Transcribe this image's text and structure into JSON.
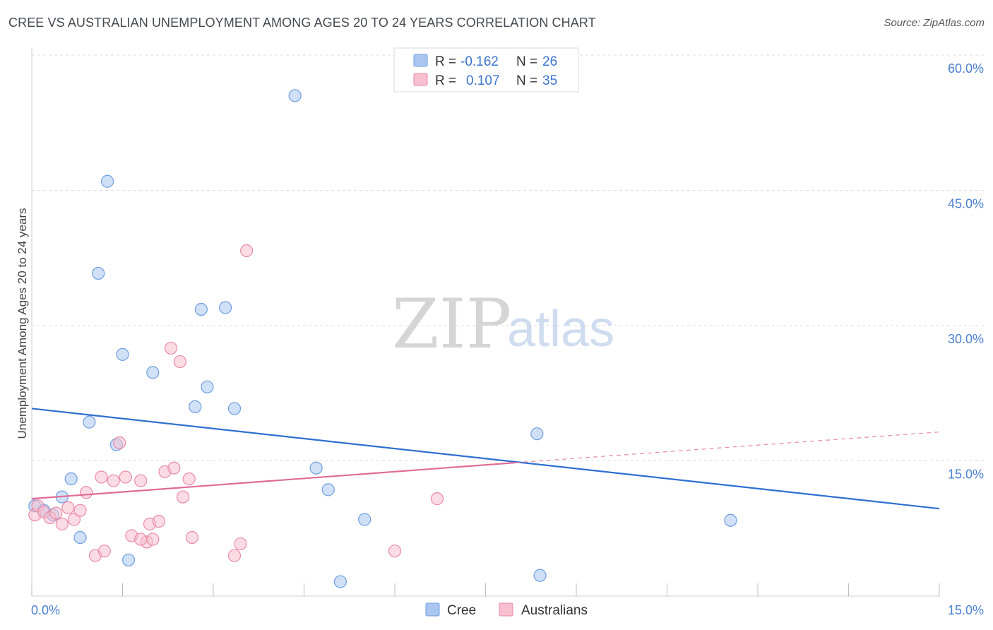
{
  "title": "CREE VS AUSTRALIAN UNEMPLOYMENT AMONG AGES 20 TO 24 YEARS CORRELATION CHART",
  "source": "Source: ZipAtlas.com",
  "watermark": {
    "zip": "ZIP",
    "atlas": "atlas"
  },
  "legend": {
    "rows": [
      {
        "r_label": "R =",
        "r_value": "-0.162",
        "n_label": "N =",
        "n_value": "26",
        "color": "#aac6f0",
        "stroke": "#6f9ee0"
      },
      {
        "r_label": "R =",
        "r_value": "0.107",
        "n_label": "N =",
        "n_value": "35",
        "color": "#f7bfd0",
        "stroke": "#e88aa8"
      }
    ]
  },
  "bottom_legend": [
    {
      "label": "Cree",
      "color": "#aac6f0",
      "stroke": "#6f9ee0"
    },
    {
      "label": "Australians",
      "color": "#f7bfd0",
      "stroke": "#e88aa8"
    }
  ],
  "chart_data": {
    "type": "scatter",
    "title": "CREE VS AUSTRALIAN UNEMPLOYMENT AMONG AGES 20 TO 24 YEARS CORRELATION CHART",
    "xlabel": "",
    "ylabel": "Unemployment Among Ages 20 to 24 years",
    "xlim": [
      0,
      15
    ],
    "ylim": [
      0,
      60
    ],
    "x_tick_labels": [
      {
        "value": 0,
        "label": "0.0%"
      },
      {
        "value": 15,
        "label": "15.0%"
      }
    ],
    "y_tick_labels": [
      {
        "value": 15,
        "label": "15.0%"
      },
      {
        "value": 30,
        "label": "30.0%"
      },
      {
        "value": 45,
        "label": "45.0%"
      },
      {
        "value": 60,
        "label": "60.0%"
      }
    ],
    "y_gridlines": [
      15,
      30,
      45,
      60
    ],
    "x_ticks": [
      0,
      1.5,
      3,
      4.5,
      6,
      7.5,
      9,
      10.5,
      12,
      13.5,
      15
    ],
    "grid": true,
    "legend_placement": "top-center",
    "series": [
      {
        "name": "Cree",
        "color": "#aac6f0",
        "stroke": "#6f9ee0",
        "line_color": "#2e6fd0",
        "points": [
          [
            0.05,
            10.0
          ],
          [
            0.2,
            9.5
          ],
          [
            0.35,
            9.0
          ],
          [
            0.5,
            11.0
          ],
          [
            0.65,
            13.0
          ],
          [
            0.8,
            6.5
          ],
          [
            0.95,
            19.3
          ],
          [
            1.25,
            46.0
          ],
          [
            1.4,
            16.8
          ],
          [
            1.1,
            35.8
          ],
          [
            1.5,
            26.8
          ],
          [
            1.6,
            4.0
          ],
          [
            2.0,
            24.8
          ],
          [
            2.7,
            21.0
          ],
          [
            2.8,
            31.8
          ],
          [
            2.9,
            23.2
          ],
          [
            3.2,
            32.0
          ],
          [
            3.35,
            20.8
          ],
          [
            4.35,
            55.5
          ],
          [
            4.7,
            14.2
          ],
          [
            4.9,
            11.8
          ],
          [
            5.1,
            1.6
          ],
          [
            5.5,
            8.5
          ],
          [
            8.35,
            18.0
          ],
          [
            8.4,
            2.3
          ],
          [
            11.55,
            8.4
          ]
        ],
        "trend": {
          "x": [
            0,
            15
          ],
          "y": [
            20.8,
            9.7
          ]
        }
      },
      {
        "name": "Australians",
        "color": "#f7bfd0",
        "stroke": "#e88aa8",
        "line_color": "#e06b97",
        "points": [
          [
            0.05,
            9.0
          ],
          [
            0.1,
            10.0
          ],
          [
            0.2,
            9.3
          ],
          [
            0.3,
            8.7
          ],
          [
            0.4,
            9.2
          ],
          [
            0.5,
            8.0
          ],
          [
            0.6,
            9.8
          ],
          [
            0.7,
            8.5
          ],
          [
            0.8,
            9.5
          ],
          [
            0.9,
            11.5
          ],
          [
            1.05,
            4.5
          ],
          [
            1.15,
            13.2
          ],
          [
            1.2,
            5.0
          ],
          [
            1.35,
            12.8
          ],
          [
            1.45,
            17.0
          ],
          [
            1.55,
            13.2
          ],
          [
            1.65,
            6.7
          ],
          [
            1.8,
            12.8
          ],
          [
            1.9,
            6.0
          ],
          [
            1.95,
            8.0
          ],
          [
            2.0,
            6.3
          ],
          [
            2.1,
            8.3
          ],
          [
            2.2,
            13.8
          ],
          [
            2.3,
            27.5
          ],
          [
            2.35,
            14.2
          ],
          [
            2.45,
            26.0
          ],
          [
            2.5,
            11.0
          ],
          [
            2.6,
            13.0
          ],
          [
            2.65,
            6.5
          ],
          [
            3.35,
            4.5
          ],
          [
            3.45,
            5.8
          ],
          [
            3.55,
            38.3
          ],
          [
            6.0,
            5.0
          ],
          [
            6.7,
            10.8
          ],
          [
            1.8,
            6.3
          ]
        ],
        "trend": {
          "x": [
            0,
            8.0
          ],
          "y": [
            10.8,
            14.8
          ]
        },
        "trend_dashed": {
          "x": [
            8.0,
            15
          ],
          "y": [
            14.8,
            18.2
          ]
        }
      }
    ]
  }
}
